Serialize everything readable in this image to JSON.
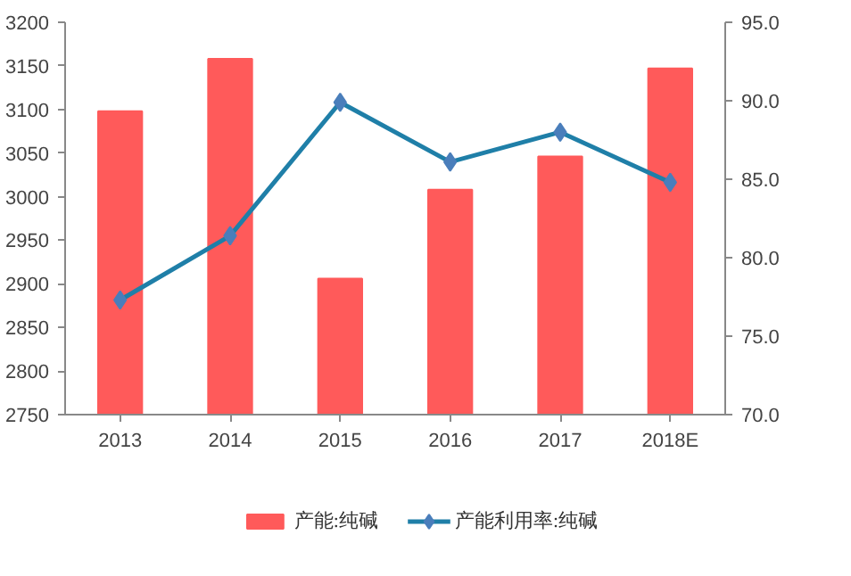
{
  "chart_data": {
    "type": "bar",
    "categories": [
      "2013",
      "2014",
      "2015",
      "2016",
      "2017",
      "2018E"
    ],
    "series": [
      {
        "name": "产能:纯碱",
        "color": "#ff5a5a",
        "values": [
          3098,
          3158,
          2906,
          3008,
          3046,
          3147
        ]
      },
      {
        "name": "产能利用率:纯碱",
        "type": "line",
        "axis": "y2",
        "color": "#1f7fa8",
        "marker": "diamond",
        "values": [
          77.3,
          81.4,
          89.9,
          86.1,
          88.0,
          84.8
        ]
      }
    ],
    "ylim": [
      2750,
      3200
    ],
    "yticks": [
      2750,
      2800,
      2850,
      2900,
      2950,
      3000,
      3050,
      3100,
      3150,
      3200
    ],
    "y2lim": [
      70,
      95
    ],
    "y2ticks": [
      {
        "value": 70,
        "label": "70.0"
      },
      {
        "value": 75,
        "label": "75.0"
      },
      {
        "value": 80,
        "label": "80.0"
      },
      {
        "value": 85,
        "label": "85.0"
      },
      {
        "value": 90,
        "label": "90.0"
      },
      {
        "value": 95,
        "label": "95.0"
      }
    ],
    "grid": false,
    "legend": "bottom"
  }
}
